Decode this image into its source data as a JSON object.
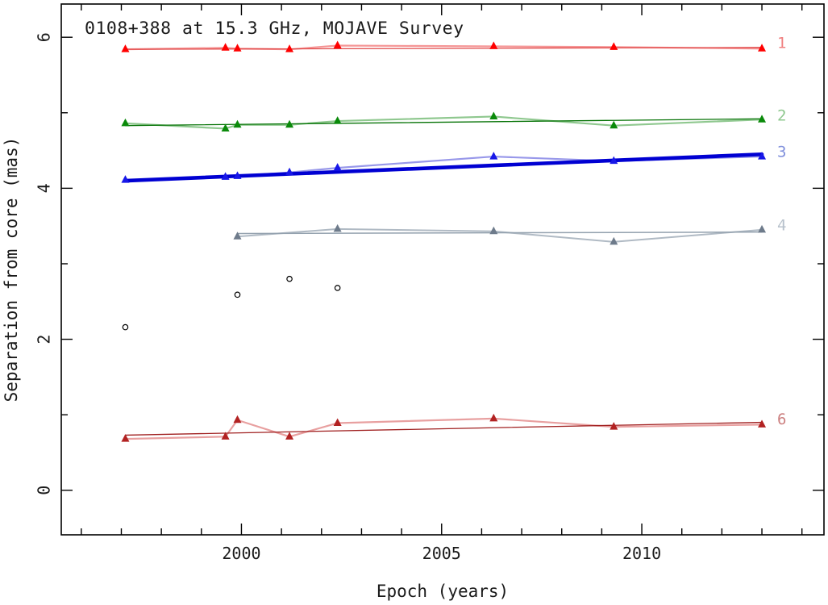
{
  "chart_data": {
    "type": "scatter",
    "title": "0108+388 at 15.3 GHz, MOJAVE Survey",
    "xlabel": "Epoch (years)",
    "ylabel": "Separation from core (mas)",
    "xlim": [
      1995.5,
      2014.55
    ],
    "ylim": [
      -0.59,
      6.44
    ],
    "grid": false,
    "legend_position": "right-of-last-point",
    "x_major_ticks": [
      2000,
      2005,
      2010
    ],
    "x_minor_ticks": [
      1996,
      1997,
      1998,
      1999,
      2001,
      2002,
      2003,
      2004,
      2006,
      2007,
      2008,
      2009,
      2011,
      2012,
      2013,
      2014
    ],
    "y_major_ticks": [
      0,
      2,
      4,
      6
    ],
    "y_minor_ticks": [
      1,
      3,
      5
    ],
    "epochs": [
      1997.1,
      1999.6,
      1999.9,
      2001.2,
      2002.4,
      2006.3,
      2009.3,
      2013.0
    ],
    "series": [
      {
        "id": "component-1",
        "label": "1",
        "label_color": "#f08080",
        "label_y": 5.93,
        "marker": "triangle-up",
        "marker_color": "#ff0000",
        "connect_color": "#f59595",
        "connect_width": 2.2,
        "fit_color": "#e04848",
        "fit_width": 1.3,
        "fit": {
          "x1": 1997.1,
          "y1": 5.84,
          "x2": 2013.0,
          "y2": 5.865
        },
        "x": [
          1997.1,
          1999.6,
          1999.9,
          2001.2,
          2002.4,
          2006.3,
          2009.3,
          2013.0
        ],
        "y": [
          5.84,
          5.86,
          5.85,
          5.84,
          5.89,
          5.88,
          5.87,
          5.85
        ]
      },
      {
        "id": "component-2",
        "label": "2",
        "label_color": "#8fc88f",
        "label_y": 4.97,
        "marker": "triangle-up",
        "marker_color": "#0a8a0a",
        "connect_color": "#8fc88f",
        "connect_width": 2.2,
        "fit_color": "#067306",
        "fit_width": 1.3,
        "fit": {
          "x1": 1997.1,
          "y1": 4.83,
          "x2": 2013.0,
          "y2": 4.92
        },
        "x": [
          1997.1,
          1999.6,
          1999.9,
          2001.2,
          2002.4,
          2006.3,
          2009.3,
          2013.0
        ],
        "y": [
          4.86,
          4.79,
          4.84,
          4.84,
          4.89,
          4.95,
          4.83,
          4.91
        ]
      },
      {
        "id": "component-3",
        "label": "3",
        "label_color": "#8090dc",
        "label_y": 4.49,
        "marker": "triangle-up",
        "marker_color": "#1818e8",
        "connect_color": "#9898ea",
        "connect_width": 2.2,
        "fit_color": "#0000d2",
        "fit_width": 4.6,
        "fit": {
          "x1": 1997.1,
          "y1": 4.1,
          "x2": 2013.0,
          "y2": 4.45
        },
        "x": [
          1997.1,
          1999.6,
          1999.9,
          2001.2,
          2002.4,
          2006.3,
          2009.3,
          2013.0
        ],
        "y": [
          4.11,
          4.15,
          4.16,
          4.21,
          4.27,
          4.42,
          4.36,
          4.42
        ]
      },
      {
        "id": "component-4",
        "label": "4",
        "label_color": "#b8c2cc",
        "label_y": 3.52,
        "marker": "triangle-up",
        "marker_color": "#6e7b8b",
        "connect_color": "#b0bac4",
        "connect_width": 2.0,
        "fit_color": "#93a1ae",
        "fit_width": 1.5,
        "fit": {
          "x1": 1999.9,
          "y1": 3.4,
          "x2": 2013.0,
          "y2": 3.42
        },
        "x": [
          1999.9,
          2002.4,
          2006.3,
          2009.3,
          2013.0
        ],
        "y": [
          3.36,
          3.46,
          3.43,
          3.29,
          3.45
        ]
      },
      {
        "id": "component-6",
        "label": "6",
        "label_color": "#cc8080",
        "label_y": 0.95,
        "marker": "triangle-up",
        "marker_color": "#b22222",
        "connect_color": "#e8a0a0",
        "connect_width": 2.2,
        "fit_color": "#a02020",
        "fit_width": 1.3,
        "fit": {
          "x1": 1997.1,
          "y1": 0.73,
          "x2": 2013.0,
          "y2": 0.9
        },
        "x": [
          1997.1,
          1999.6,
          1999.9,
          2001.2,
          2002.4,
          2006.3,
          2009.3,
          2013.0
        ],
        "y": [
          0.68,
          0.71,
          0.93,
          0.71,
          0.89,
          0.95,
          0.84,
          0.87
        ]
      },
      {
        "id": "unidentified-component",
        "label": "",
        "label_color": "#000000",
        "label_y": null,
        "marker": "open-circle",
        "marker_color": "#000000",
        "connect_color": null,
        "connect_width": 0,
        "fit_color": null,
        "fit_width": 0,
        "fit": null,
        "x": [
          1997.1,
          1999.9,
          2001.2,
          2002.4
        ],
        "y": [
          2.16,
          2.59,
          2.8,
          2.68
        ]
      }
    ]
  }
}
